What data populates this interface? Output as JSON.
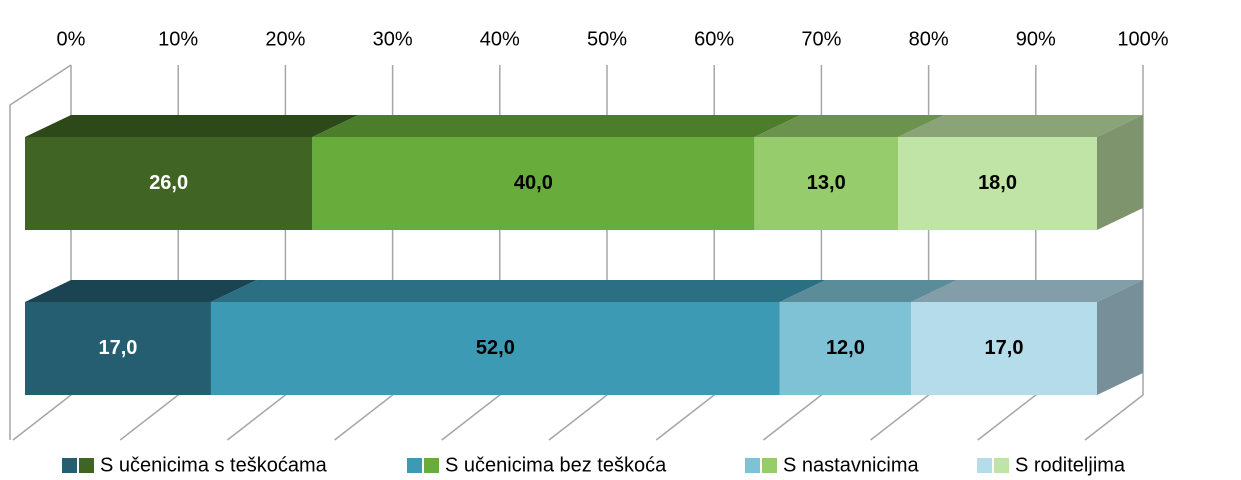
{
  "chart_data": {
    "type": "stacked_bar_3d",
    "orientation": "horizontal",
    "categories": [
      null,
      null
    ],
    "series": [
      {
        "name": "S učenicima s teškoćama",
        "colors": [
          "#3f6423",
          "#245e70"
        ],
        "values": [
          26,
          17
        ],
        "value_labels": [
          "26,0",
          "17,0"
        ]
      },
      {
        "name": "S učenicima bez teškoća",
        "colors": [
          "#68ad3c",
          "#3c9ab5"
        ],
        "values": [
          40,
          52
        ],
        "value_labels": [
          "40,0",
          "52,0"
        ]
      },
      {
        "name": "S nastavnicima",
        "colors": [
          "#96cc6c",
          "#7fc2d5"
        ],
        "values": [
          13,
          12
        ],
        "value_labels": [
          "13,0",
          "12,0"
        ]
      },
      {
        "name": "S roditeljima",
        "colors": [
          "#c0e4a6",
          "#b5dcea"
        ],
        "values": [
          18,
          17
        ],
        "value_labels": [
          "18,0",
          "17,0"
        ]
      }
    ],
    "xlim": [
      0,
      100
    ],
    "xticks": [
      {
        "value": 0,
        "label": "0%"
      },
      {
        "value": 10,
        "label": "10%"
      },
      {
        "value": 20,
        "label": "20%"
      },
      {
        "value": 30,
        "label": "30%"
      },
      {
        "value": 40,
        "label": "40%"
      },
      {
        "value": 50,
        "label": "50%"
      },
      {
        "value": 60,
        "label": "60%"
      },
      {
        "value": 70,
        "label": "70%"
      },
      {
        "value": 80,
        "label": "80%"
      },
      {
        "value": 90,
        "label": "90%"
      },
      {
        "value": 100,
        "label": "100%"
      }
    ],
    "grid": true,
    "legend": "bottom"
  }
}
